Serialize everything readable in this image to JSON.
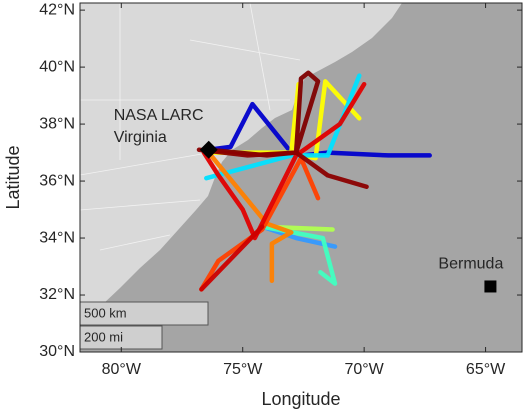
{
  "chart_data": {
    "type": "map",
    "xlabel": "Longitude",
    "ylabel": "Latitude",
    "xlim": [
      -81.7,
      -63.5
    ],
    "ylim": [
      30,
      42.25
    ],
    "xticks": [
      {
        "value": -80,
        "label": "80°W"
      },
      {
        "value": -75,
        "label": "75°W"
      },
      {
        "value": -70,
        "label": "70°W"
      },
      {
        "value": -65,
        "label": "65°W"
      }
    ],
    "yticks": [
      {
        "value": 30,
        "label": "30°N"
      },
      {
        "value": 32,
        "label": "32°N"
      },
      {
        "value": 34,
        "label": "34°N"
      },
      {
        "value": 36,
        "label": "36°N"
      },
      {
        "value": 38,
        "label": "38°N"
      },
      {
        "value": 40,
        "label": "40°N"
      },
      {
        "value": 42,
        "label": "42°N"
      }
    ],
    "series": [
      {
        "color": "#0000cc",
        "x": [
          -76.4,
          -75.5,
          -74.6,
          -73,
          -72.5,
          -71.5,
          -69,
          -67.3
        ],
        "values": [
          37.1,
          37.2,
          38.7,
          37.0,
          36.9,
          37.0,
          36.9,
          36.9
        ]
      },
      {
        "color": "#ffff00",
        "x": [
          -76.4,
          -73,
          -72.7,
          -73.0,
          -72.0,
          -71.6,
          -70.2
        ],
        "values": [
          37.0,
          37.0,
          39.4,
          37.0,
          36.8,
          39.5,
          38.2
        ]
      },
      {
        "color": "#00e0ff",
        "x": [
          -76.5,
          -73,
          -71.5,
          -70.2
        ],
        "values": [
          36.1,
          36.9,
          36.9,
          39.7
        ]
      },
      {
        "color": "#3399ff",
        "x": [
          -74.2,
          -72.8,
          -71.2
        ],
        "values": [
          34.4,
          34.0,
          33.7
        ]
      },
      {
        "color": "#b0ff50",
        "x": [
          -74.2,
          -71.3
        ],
        "values": [
          34.4,
          34.3
        ]
      },
      {
        "color": "#40ffc0",
        "x": [
          -74.2,
          -71.7,
          -71.2,
          -71.8
        ],
        "values": [
          34.4,
          34.0,
          32.4,
          32.8
        ]
      },
      {
        "color": "#ff8000",
        "x": [
          -76.5,
          -74.0,
          -73.0,
          -73.8,
          -73.8
        ],
        "values": [
          37.1,
          34.5,
          34.2,
          33.8,
          32.5
        ]
      },
      {
        "color": "#ff4000",
        "x": [
          -76.7,
          -76,
          -74.2,
          -72.6,
          -71.9
        ],
        "values": [
          32.2,
          33.2,
          34.3,
          36.8,
          35.4
        ]
      },
      {
        "color": "#e00000",
        "x": [
          -76.6,
          -76,
          -75,
          -74.5,
          -72.8,
          -71,
          -70
        ],
        "values": [
          37.0,
          36.2,
          35.0,
          34.0,
          36.9,
          38.0,
          39.4
        ]
      },
      {
        "color": "#cc0000",
        "x": [
          -74.2,
          -76.7
        ],
        "values": [
          34.4,
          32.2
        ]
      },
      {
        "color": "#800000",
        "x": [
          -76.4,
          -74,
          -72.8,
          -72.6,
          -72.3,
          -71.9,
          -72.8
        ],
        "values": [
          37.1,
          36.9,
          37.0,
          39.6,
          39.8,
          39.5,
          37.0
        ]
      },
      {
        "color": "#8b0000",
        "x": [
          -76.8,
          -74.8,
          -72.8,
          -71.5,
          -69.9
        ],
        "values": [
          37.1,
          36.9,
          37.0,
          36.2,
          35.8
        ]
      }
    ],
    "annotations": [
      {
        "lines": [
          "NASA LARC",
          "Virginia"
        ],
        "x": -76.4,
        "y": 37.1,
        "marker": "diamond"
      },
      {
        "lines": [
          "Bermuda"
        ],
        "x": -64.8,
        "y": 32.3,
        "marker": "square"
      }
    ],
    "scale_bar": [
      "500 km",
      "200 mi"
    ]
  }
}
